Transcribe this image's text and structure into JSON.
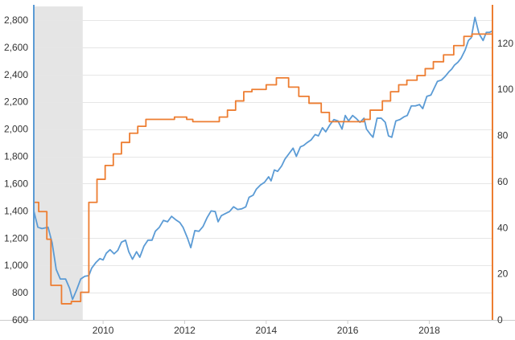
{
  "chart_data": {
    "type": "line",
    "title": "",
    "xlabel": "",
    "ylabel_left": "",
    "ylabel_right": "",
    "x_range": [
      2008.3,
      2018.55
    ],
    "x_ticks": [
      2010,
      2012,
      2014,
      2016,
      2018
    ],
    "x_tick_labels": [
      "2010",
      "2012",
      "2014",
      "2016",
      "2018"
    ],
    "ylim_left": [
      600,
      2900
    ],
    "y_ticks_left": [
      600,
      800,
      1000,
      1200,
      1400,
      1600,
      1800,
      2000,
      2200,
      2400,
      2600,
      2800
    ],
    "y_tick_labels_left": [
      "600",
      "800",
      "1,000",
      "1,200",
      "1,400",
      "1,600",
      "1,800",
      "2,000",
      "2,200",
      "2,400",
      "2,600",
      "2,800"
    ],
    "ylim_right": [
      0,
      136
    ],
    "y_ticks_right": [
      0,
      20,
      40,
      60,
      80,
      100,
      120
    ],
    "y_tick_labels_right": [
      "0",
      "20",
      "40",
      "60",
      "80",
      "100",
      "120"
    ],
    "grid": true,
    "legend": "none",
    "shaded_regions": [
      {
        "x": [
          2008.3,
          2009.5
        ]
      }
    ],
    "series": [
      {
        "axis": "left",
        "color": "#5b9bd5",
        "points": [
          [
            2008.3,
            1400
          ],
          [
            2008.4,
            1280
          ],
          [
            2008.5,
            1270
          ],
          [
            2008.65,
            1280
          ],
          [
            2008.75,
            1165
          ],
          [
            2008.85,
            970
          ],
          [
            2008.95,
            900
          ],
          [
            2009.08,
            900
          ],
          [
            2009.18,
            830
          ],
          [
            2009.25,
            750
          ],
          [
            2009.35,
            820
          ],
          [
            2009.45,
            900
          ],
          [
            2009.55,
            920
          ],
          [
            2009.65,
            925
          ],
          [
            2009.72,
            980
          ],
          [
            2009.82,
            1020
          ],
          [
            2009.92,
            1050
          ],
          [
            2010.0,
            1040
          ],
          [
            2010.08,
            1090
          ],
          [
            2010.17,
            1115
          ],
          [
            2010.27,
            1085
          ],
          [
            2010.36,
            1110
          ],
          [
            2010.45,
            1170
          ],
          [
            2010.55,
            1185
          ],
          [
            2010.63,
            1100
          ],
          [
            2010.72,
            1045
          ],
          [
            2010.82,
            1100
          ],
          [
            2010.9,
            1060
          ],
          [
            2011.0,
            1140
          ],
          [
            2011.1,
            1185
          ],
          [
            2011.2,
            1185
          ],
          [
            2011.28,
            1250
          ],
          [
            2011.38,
            1280
          ],
          [
            2011.48,
            1330
          ],
          [
            2011.58,
            1320
          ],
          [
            2011.68,
            1360
          ],
          [
            2011.78,
            1335
          ],
          [
            2011.88,
            1315
          ],
          [
            2011.96,
            1280
          ],
          [
            2012.07,
            1200
          ],
          [
            2012.15,
            1130
          ],
          [
            2012.25,
            1255
          ],
          [
            2012.35,
            1250
          ],
          [
            2012.45,
            1285
          ],
          [
            2012.55,
            1350
          ],
          [
            2012.65,
            1400
          ],
          [
            2012.75,
            1395
          ],
          [
            2012.82,
            1320
          ],
          [
            2012.9,
            1365
          ],
          [
            2013.0,
            1380
          ],
          [
            2013.1,
            1395
          ],
          [
            2013.2,
            1430
          ],
          [
            2013.3,
            1410
          ],
          [
            2013.4,
            1415
          ],
          [
            2013.5,
            1430
          ],
          [
            2013.58,
            1500
          ],
          [
            2013.68,
            1515
          ],
          [
            2013.76,
            1560
          ],
          [
            2013.86,
            1590
          ],
          [
            2013.96,
            1610
          ],
          [
            2014.06,
            1650
          ],
          [
            2014.12,
            1620
          ],
          [
            2014.2,
            1700
          ],
          [
            2014.28,
            1690
          ],
          [
            2014.38,
            1730
          ],
          [
            2014.46,
            1780
          ],
          [
            2014.56,
            1820
          ],
          [
            2014.66,
            1860
          ],
          [
            2014.74,
            1800
          ],
          [
            2014.84,
            1870
          ],
          [
            2014.92,
            1880
          ],
          [
            2015.0,
            1900
          ],
          [
            2015.1,
            1920
          ],
          [
            2015.2,
            1960
          ],
          [
            2015.28,
            1950
          ],
          [
            2015.38,
            2010
          ],
          [
            2015.46,
            1980
          ],
          [
            2015.56,
            2030
          ],
          [
            2015.66,
            2070
          ],
          [
            2015.76,
            2060
          ],
          [
            2015.86,
            2000
          ],
          [
            2015.94,
            2100
          ],
          [
            2016.02,
            2060
          ],
          [
            2016.12,
            2100
          ],
          [
            2016.2,
            2080
          ],
          [
            2016.3,
            2050
          ],
          [
            2016.4,
            2080
          ],
          [
            2016.46,
            2000
          ],
          [
            2016.56,
            1960
          ],
          [
            2016.62,
            1940
          ],
          [
            2016.72,
            2080
          ],
          [
            2016.82,
            2080
          ],
          [
            2016.92,
            2050
          ],
          [
            2017.0,
            1950
          ],
          [
            2017.08,
            1940
          ],
          [
            2017.18,
            2060
          ],
          [
            2017.28,
            2070
          ],
          [
            2017.38,
            2090
          ],
          [
            2017.46,
            2100
          ],
          [
            2017.56,
            2170
          ],
          [
            2017.66,
            2170
          ],
          [
            2017.76,
            2180
          ],
          [
            2017.84,
            2150
          ],
          [
            2017.94,
            2240
          ],
          [
            2018.04,
            2250
          ],
          [
            2018.12,
            2300
          ],
          [
            2018.2,
            2350
          ],
          [
            2018.3,
            2360
          ],
          [
            2018.4,
            2390
          ],
          [
            2018.48,
            2420
          ],
          [
            2018.55,
            2440
          ],
          [
            2018.62,
            2470
          ],
          [
            2018.7,
            2490
          ],
          [
            2018.78,
            2520
          ],
          [
            2018.88,
            2580
          ],
          [
            2018.96,
            2650
          ],
          [
            2019.03,
            2670
          ],
          [
            2019.12,
            2820
          ],
          [
            2019.22,
            2700
          ],
          [
            2019.32,
            2650
          ],
          [
            2019.4,
            2710
          ],
          [
            2019.48,
            2710
          ],
          [
            2019.55,
            2720
          ]
        ]
      },
      {
        "axis": "right",
        "color": "#ed7d31",
        "points": [
          [
            2008.3,
            51
          ],
          [
            2008.42,
            51
          ],
          [
            2008.42,
            47
          ],
          [
            2008.62,
            47
          ],
          [
            2008.62,
            35
          ],
          [
            2008.72,
            35
          ],
          [
            2008.72,
            15
          ],
          [
            2008.98,
            15
          ],
          [
            2008.98,
            7
          ],
          [
            2009.22,
            7
          ],
          [
            2009.22,
            8
          ],
          [
            2009.45,
            8
          ],
          [
            2009.45,
            12
          ],
          [
            2009.65,
            12
          ],
          [
            2009.65,
            51
          ],
          [
            2009.85,
            51
          ],
          [
            2009.85,
            61
          ],
          [
            2010.05,
            61
          ],
          [
            2010.05,
            67
          ],
          [
            2010.25,
            67
          ],
          [
            2010.25,
            72
          ],
          [
            2010.45,
            72
          ],
          [
            2010.45,
            77
          ],
          [
            2010.65,
            77
          ],
          [
            2010.65,
            81
          ],
          [
            2010.85,
            81
          ],
          [
            2010.85,
            84
          ],
          [
            2011.05,
            84
          ],
          [
            2011.05,
            87
          ],
          [
            2011.75,
            87
          ],
          [
            2011.75,
            88
          ],
          [
            2012.05,
            88
          ],
          [
            2012.05,
            87
          ],
          [
            2012.2,
            87
          ],
          [
            2012.2,
            86
          ],
          [
            2012.85,
            86
          ],
          [
            2012.85,
            88
          ],
          [
            2013.05,
            88
          ],
          [
            2013.05,
            91
          ],
          [
            2013.25,
            91
          ],
          [
            2013.25,
            95
          ],
          [
            2013.45,
            95
          ],
          [
            2013.45,
            99
          ],
          [
            2013.65,
            99
          ],
          [
            2013.65,
            100
          ],
          [
            2014.0,
            100
          ],
          [
            2014.0,
            102
          ],
          [
            2014.25,
            102
          ],
          [
            2014.25,
            105
          ],
          [
            2014.55,
            105
          ],
          [
            2014.55,
            101
          ],
          [
            2014.8,
            101
          ],
          [
            2014.8,
            97
          ],
          [
            2015.05,
            97
          ],
          [
            2015.05,
            94
          ],
          [
            2015.35,
            94
          ],
          [
            2015.35,
            90
          ],
          [
            2015.55,
            90
          ],
          [
            2015.55,
            86
          ],
          [
            2016.4,
            86
          ],
          [
            2016.4,
            87
          ],
          [
            2016.55,
            87
          ],
          [
            2016.55,
            91
          ],
          [
            2016.85,
            91
          ],
          [
            2016.85,
            95
          ],
          [
            2017.05,
            95
          ],
          [
            2017.05,
            99
          ],
          [
            2017.25,
            99
          ],
          [
            2017.25,
            102
          ],
          [
            2017.45,
            102
          ],
          [
            2017.45,
            104
          ],
          [
            2017.7,
            104
          ],
          [
            2017.7,
            106
          ],
          [
            2017.9,
            106
          ],
          [
            2017.9,
            109
          ],
          [
            2018.1,
            109
          ],
          [
            2018.1,
            112
          ],
          [
            2018.35,
            112
          ],
          [
            2018.35,
            115
          ],
          [
            2018.6,
            115
          ],
          [
            2018.6,
            119
          ],
          [
            2018.85,
            119
          ],
          [
            2018.85,
            123
          ],
          [
            2019.05,
            123
          ],
          [
            2019.05,
            124
          ],
          [
            2019.55,
            124
          ]
        ]
      }
    ]
  }
}
